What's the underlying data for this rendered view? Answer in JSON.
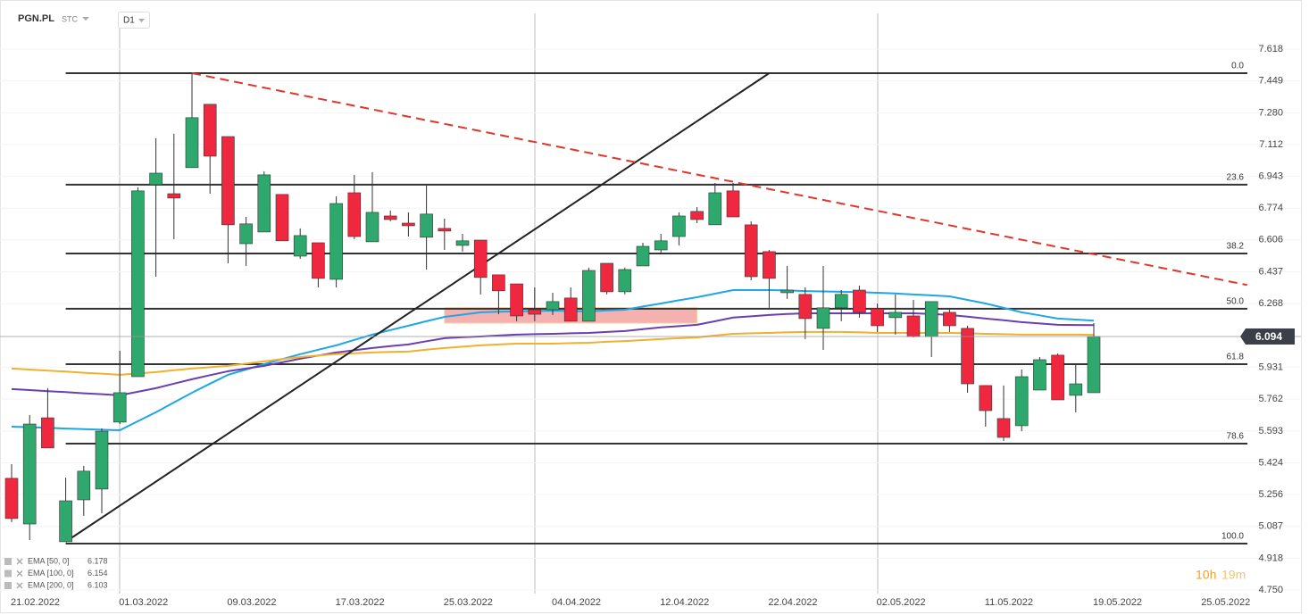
{
  "chart_data": {
    "type": "candlestick",
    "symbol": "PGN.PL",
    "market": "STC",
    "interval": "D1",
    "countdown_hours": "10h",
    "countdown_minutes": "19m",
    "up_color": "#2ea86c",
    "down_color": "#f0283f",
    "categories": [
      "21.02.2022",
      null,
      null,
      null,
      null,
      null,
      "01.03.2022",
      null,
      null,
      null,
      null,
      null,
      "09.03.2022",
      null,
      null,
      null,
      null,
      null,
      "17.03.2022",
      null,
      null,
      null,
      null,
      null,
      "25.03.2022",
      null,
      null,
      null,
      null,
      null,
      "04.04.2022",
      null,
      null,
      null,
      null,
      null,
      "12.04.2022",
      null,
      null,
      null,
      null,
      null,
      "22.04.2022",
      null,
      null,
      null,
      null,
      null,
      "02.05.2022",
      null,
      null,
      null,
      null,
      null,
      "11.05.2022",
      null,
      null,
      null,
      null,
      null,
      "19.05.2022",
      null,
      null,
      null,
      null,
      null,
      "25.05.2022"
    ],
    "open": [
      5.342,
      5.1,
      5.663,
      5.006,
      5.228,
      5.285,
      5.64,
      5.881,
      6.899,
      6.851,
      6.989,
      7.325,
      7.154,
      6.586,
      6.648,
      6.847,
      6.52,
      6.591,
      6.397,
      6.856,
      6.596,
      6.733,
      6.695,
      6.62,
      6.667,
      6.577,
      6.605,
      6.421,
      6.373,
      6.236,
      6.236,
      6.298,
      6.175,
      6.482,
      6.331,
      6.468,
      6.553,
      6.624,
      6.757,
      6.686,
      6.866,
      6.686,
      6.544,
      6.326,
      6.317,
      6.137,
      6.246,
      6.34,
      6.241,
      6.194,
      6.203,
      6.094,
      6.222,
      6.137,
      5.834,
      5.659,
      5.621,
      5.81,
      5.995,
      5.782,
      5.796,
      null,
      null,
      null,
      null,
      null,
      null
    ],
    "high": [
      5.417,
      5.678,
      5.82,
      5.346,
      5.408,
      5.607,
      6.018,
      6.885,
      7.145,
      7.169,
      7.49,
      7.325,
      7.154,
      6.728,
      6.97,
      6.847,
      6.667,
      6.591,
      6.837,
      6.951,
      6.965,
      6.762,
      6.752,
      6.894,
      6.719,
      6.638,
      6.605,
      6.421,
      6.373,
      6.354,
      6.326,
      6.354,
      6.459,
      6.482,
      6.459,
      6.591,
      6.638,
      6.752,
      6.78,
      6.908,
      6.908,
      6.705,
      6.553,
      6.468,
      6.354,
      6.468,
      6.34,
      6.364,
      6.269,
      6.317,
      6.288,
      6.279,
      6.236,
      6.151,
      5.834,
      5.834,
      5.919,
      5.985,
      6.004,
      5.947,
      6.165,
      null,
      null,
      null,
      null,
      null,
      null
    ],
    "low": [
      5.11,
      5.015,
      5.503,
      5.006,
      5.143,
      5.157,
      5.63,
      5.881,
      6.411,
      6.61,
      6.989,
      6.851,
      6.482,
      6.468,
      6.648,
      6.601,
      6.506,
      6.354,
      6.354,
      6.61,
      6.596,
      6.705,
      6.624,
      6.449,
      6.553,
      6.544,
      6.317,
      6.212,
      6.175,
      6.175,
      6.208,
      6.175,
      6.175,
      6.317,
      6.317,
      6.468,
      6.539,
      6.577,
      6.695,
      6.686,
      6.728,
      6.392,
      6.246,
      6.293,
      6.08,
      6.023,
      6.175,
      6.194,
      6.118,
      6.104,
      6.089,
      5.985,
      6.118,
      5.796,
      5.616,
      5.54,
      5.592,
      5.81,
      5.758,
      5.692,
      5.796,
      null,
      null,
      null,
      null,
      null,
      null
    ],
    "close": [
      5.129,
      5.63,
      5.503,
      5.223,
      5.38,
      5.592,
      5.796,
      6.866,
      6.96,
      6.828,
      7.254,
      7.05,
      6.686,
      6.691,
      6.951,
      6.601,
      6.629,
      6.402,
      6.799,
      6.624,
      6.752,
      6.714,
      6.681,
      6.743,
      6.653,
      6.601,
      6.407,
      6.336,
      6.203,
      6.212,
      6.279,
      6.175,
      6.444,
      6.331,
      6.449,
      6.572,
      6.601,
      6.733,
      6.714,
      6.856,
      6.728,
      6.411,
      6.402,
      6.34,
      6.189,
      6.246,
      6.317,
      6.222,
      6.151,
      6.222,
      6.094,
      6.279,
      6.151,
      5.843,
      5.701,
      5.559,
      5.881,
      5.971,
      5.758,
      5.843,
      6.094,
      null,
      null,
      null,
      null,
      null,
      null
    ],
    "series": [
      {
        "name": "EMA [50, 0]",
        "color": "#1ea7e4",
        "values": [
          5.616,
          5.613,
          5.61,
          5.606,
          5.603,
          5.6,
          5.597,
          5.645,
          5.692,
          5.744,
          5.796,
          5.844,
          5.891,
          5.919,
          5.947,
          5.974,
          6.0,
          6.024,
          6.047,
          6.076,
          6.104,
          6.128,
          6.151,
          6.175,
          6.198,
          6.21,
          6.222,
          6.225,
          6.227,
          6.229,
          6.231,
          6.229,
          6.227,
          6.232,
          6.236,
          6.253,
          6.269,
          6.286,
          6.302,
          6.321,
          6.34,
          6.34,
          6.34,
          6.338,
          6.335,
          6.333,
          6.331,
          6.329,
          6.326,
          6.322,
          6.317,
          6.312,
          6.307,
          6.288,
          6.269,
          6.246,
          6.222,
          6.206,
          6.189,
          6.184,
          6.178,
          null,
          null,
          null,
          null,
          null,
          null
        ]
      },
      {
        "name": "EMA [100, 0]",
        "color": "#6b3fb0",
        "values": [
          5.815,
          5.81,
          5.804,
          5.799,
          5.793,
          5.788,
          5.782,
          5.801,
          5.82,
          5.844,
          5.867,
          5.889,
          5.91,
          5.924,
          5.938,
          5.957,
          5.976,
          5.993,
          6.009,
          6.021,
          6.033,
          6.043,
          6.052,
          6.069,
          6.085,
          6.09,
          6.094,
          6.099,
          6.104,
          6.106,
          6.108,
          6.111,
          6.113,
          6.118,
          6.123,
          6.133,
          6.142,
          6.149,
          6.156,
          6.175,
          6.194,
          6.201,
          6.208,
          6.213,
          6.217,
          6.217,
          6.217,
          6.217,
          6.217,
          6.217,
          6.217,
          6.213,
          6.208,
          6.199,
          6.189,
          6.18,
          6.17,
          6.163,
          6.156,
          6.155,
          6.154,
          null,
          null,
          null,
          null,
          null,
          null
        ]
      },
      {
        "name": "EMA [200, 0]",
        "color": "#f0b030",
        "values": [
          5.924,
          5.919,
          5.913,
          5.908,
          5.902,
          5.897,
          5.891,
          5.898,
          5.905,
          5.915,
          5.924,
          5.931,
          5.938,
          5.95,
          5.962,
          5.974,
          5.985,
          5.993,
          6.0,
          6.005,
          6.009,
          6.012,
          6.014,
          6.024,
          6.033,
          6.04,
          6.047,
          6.052,
          6.056,
          6.056,
          6.056,
          6.059,
          6.061,
          6.066,
          6.07,
          6.075,
          6.08,
          6.085,
          6.089,
          6.099,
          6.108,
          6.111,
          6.113,
          6.116,
          6.118,
          6.118,
          6.118,
          6.116,
          6.113,
          6.113,
          6.113,
          6.113,
          6.113,
          6.111,
          6.108,
          6.106,
          6.104,
          6.104,
          6.104,
          6.104,
          6.103,
          null,
          null,
          null,
          null,
          null,
          null
        ]
      }
    ],
    "fib_levels": [
      {
        "label": "0.0",
        "value": 7.49
      },
      {
        "label": "23.6",
        "value": 6.899
      },
      {
        "label": "38.2",
        "value": 6.534
      },
      {
        "label": "50.0",
        "value": 6.241
      },
      {
        "label": "61.8",
        "value": 5.947
      },
      {
        "label": "78.6",
        "value": 5.526
      },
      {
        "label": "100.0",
        "value": 4.996
      }
    ],
    "trendlines": [
      {
        "color": "#222222",
        "dashed": false,
        "points": [
          [
            3,
            5.006
          ],
          [
            42,
            7.49
          ]
        ]
      },
      {
        "color": "#e0362c",
        "dashed": true,
        "points": [
          [
            10,
            7.49
          ],
          [
            68.5,
            6.367
          ]
        ]
      }
    ],
    "zone": {
      "from": 24,
      "to": 38,
      "top": 6.246,
      "bottom": 6.165,
      "color": "#f4a3a3"
    },
    "ylim": [
      4.731,
      7.807
    ],
    "yticks": [
      7.618,
      7.449,
      {
        "value": 7.28,
        "label": "7.280"
      },
      7.112,
      6.943,
      6.774,
      6.606,
      6.437,
      6.268,
      5.931,
      5.762,
      5.593,
      5.424,
      5.256,
      5.087,
      4.918,
      {
        "value": 4.75,
        "label": "4.750"
      }
    ],
    "grid": true
  }
}
